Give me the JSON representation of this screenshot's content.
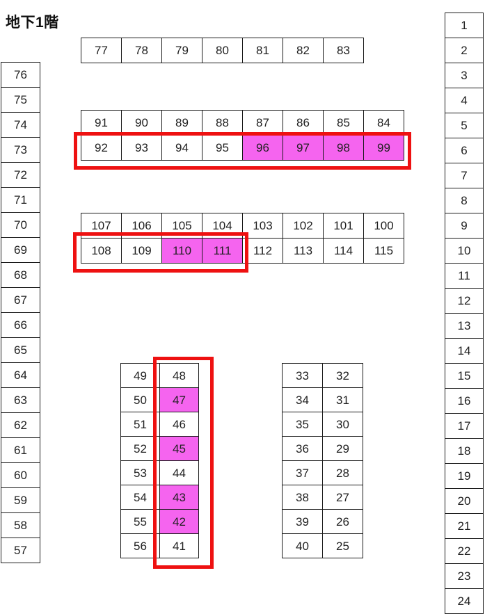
{
  "title": "地下1階",
  "colors": {
    "highlight_fill": "#f564ef",
    "selection_outline": "#ee1111",
    "cell_border": "#1a1a1a"
  },
  "highlighted_cells": [
    "96",
    "97",
    "98",
    "99",
    "110",
    "111",
    "47",
    "45",
    "43",
    "42"
  ],
  "left_column": {
    "cells": [
      "76",
      "75",
      "74",
      "73",
      "72",
      "71",
      "70",
      "69",
      "68",
      "67",
      "66",
      "65",
      "64",
      "63",
      "62",
      "61",
      "60",
      "59",
      "58",
      "57"
    ]
  },
  "right_column": {
    "cells": [
      "1",
      "2",
      "3",
      "4",
      "5",
      "6",
      "7",
      "8",
      "9",
      "10",
      "11",
      "12",
      "13",
      "14",
      "15",
      "16",
      "17",
      "18",
      "19",
      "20",
      "21",
      "22",
      "23",
      "24"
    ]
  },
  "top_row": {
    "cells": [
      "77",
      "78",
      "79",
      "80",
      "81",
      "82",
      "83"
    ]
  },
  "block_upper": {
    "rows": [
      [
        "91",
        "90",
        "89",
        "88",
        "87",
        "86",
        "85",
        "84"
      ],
      [
        "92",
        "93",
        "94",
        "95",
        "96",
        "97",
        "98",
        "99"
      ]
    ]
  },
  "block_middle": {
    "rows": [
      [
        "107",
        "106",
        "105",
        "104",
        "103",
        "102",
        "101",
        "100"
      ],
      [
        "108",
        "109",
        "110",
        "111",
        "112",
        "113",
        "114",
        "115"
      ]
    ]
  },
  "block_bottom_left": {
    "columns": [
      [
        "49",
        "50",
        "51",
        "52",
        "53",
        "54",
        "55",
        "56"
      ],
      [
        "48",
        "47",
        "46",
        "45",
        "44",
        "43",
        "42",
        "41"
      ]
    ]
  },
  "block_bottom_right": {
    "columns": [
      [
        "33",
        "34",
        "35",
        "36",
        "37",
        "38",
        "39",
        "40"
      ],
      [
        "32",
        "31",
        "30",
        "29",
        "28",
        "27",
        "26",
        "25"
      ]
    ]
  }
}
